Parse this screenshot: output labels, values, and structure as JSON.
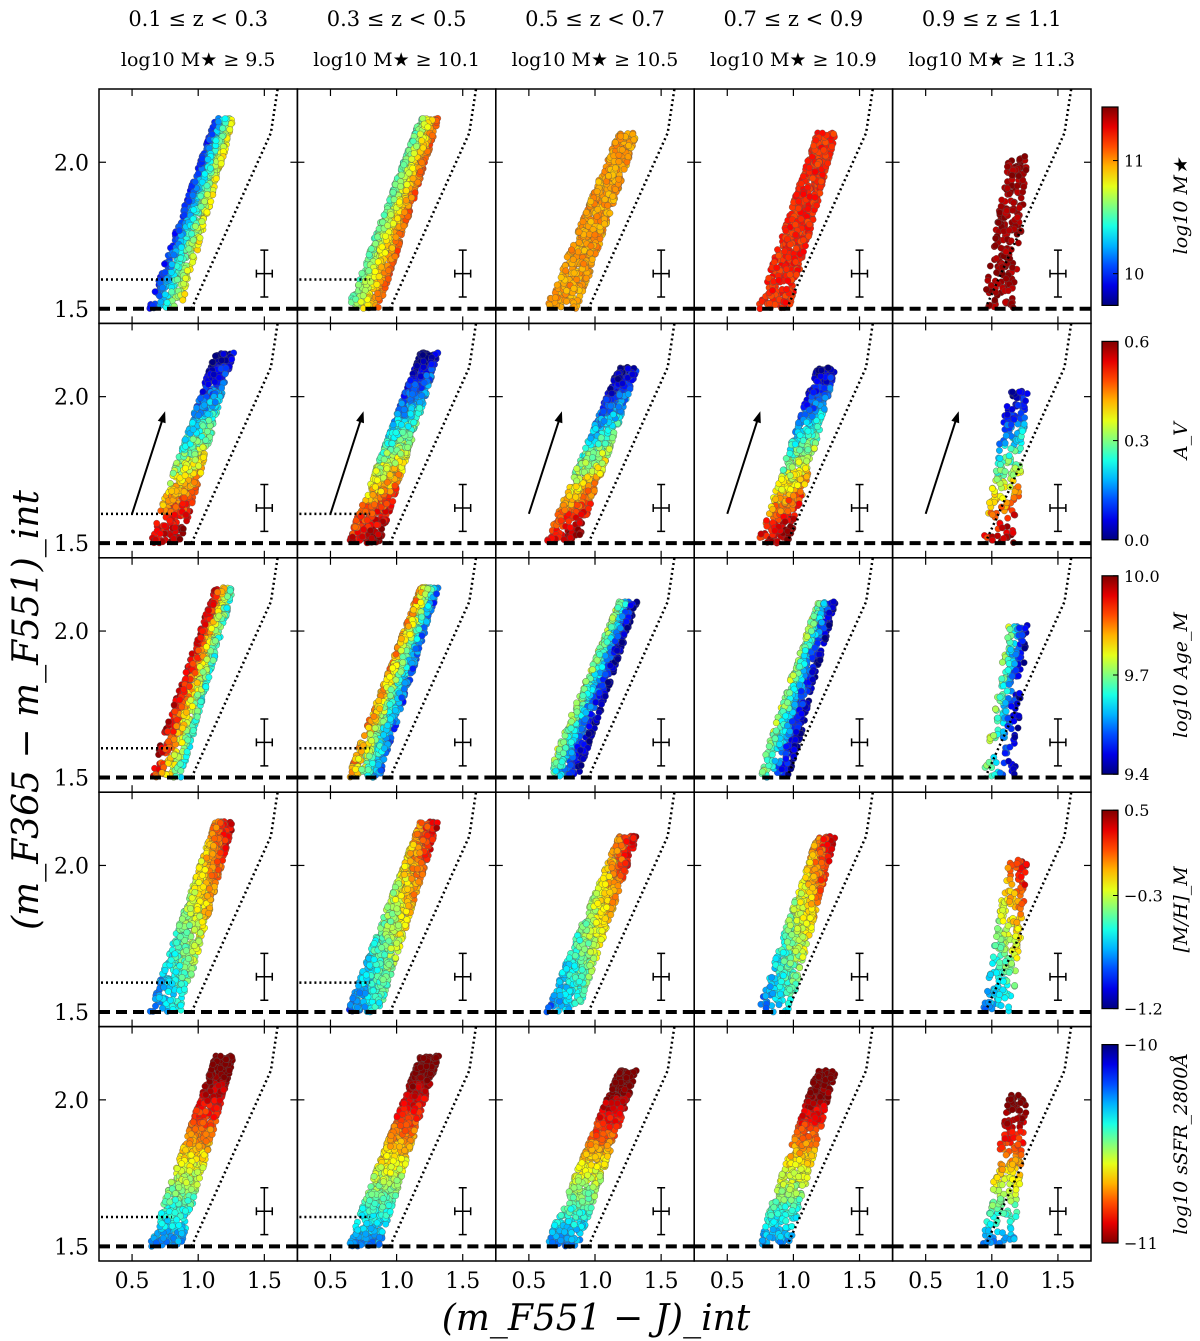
{
  "figure": {
    "xlabel": "(m_F551 − J)_int",
    "ylabel": "(m_F365 − m_F551)_int"
  },
  "columns": [
    {
      "z_label": "0.1 ≤ z < 0.3",
      "mass_label": "log10 M★ ≥ 9.5"
    },
    {
      "z_label": "0.3 ≤ z < 0.5",
      "mass_label": "log10 M★ ≥ 10.1"
    },
    {
      "z_label": "0.5 ≤ z < 0.7",
      "mass_label": "log10 M★ ≥ 10.5"
    },
    {
      "z_label": "0.7 ≤ z < 0.9",
      "mass_label": "log10 M★ ≥ 10.9"
    },
    {
      "z_label": "0.9 ≤ z ≤ 1.1",
      "mass_label": "log10 M★ ≥ 11.3"
    }
  ],
  "rows": [
    {
      "colorbar_label": "log10 M★",
      "ticks": [
        "11",
        "10"
      ]
    },
    {
      "colorbar_label": "A_V",
      "ticks": [
        "0.6",
        "0.3",
        "0.0"
      ]
    },
    {
      "colorbar_label": "log10 Age_M",
      "ticks": [
        "10.0",
        "9.7",
        "9.4"
      ]
    },
    {
      "colorbar_label": "[M/H]_M",
      "ticks": [
        "0.5",
        "−0.3",
        "−1.2"
      ]
    },
    {
      "colorbar_label": "log10 sSFR_2800Å",
      "ticks": [
        "−10",
        "−11"
      ]
    }
  ],
  "chart_data": {
    "type": "scatter",
    "layout": "5x5 grid",
    "xlim": [
      0.25,
      1.75
    ],
    "ylim": [
      1.45,
      2.25
    ],
    "xticks": [
      "0.5",
      "1.0",
      "1.5"
    ],
    "yticks": [
      "1.5",
      "2.0"
    ],
    "colormap": "jet",
    "columns_x_range": [
      [
        0.6,
        1.25
      ],
      [
        0.6,
        1.3
      ],
      [
        0.6,
        1.3
      ],
      [
        0.7,
        1.3
      ],
      [
        0.9,
        1.25
      ]
    ],
    "columns_y_max": [
      2.15,
      2.15,
      2.1,
      2.1,
      2.02
    ],
    "columns_npoints": [
      1600,
      2200,
      1500,
      1300,
      450
    ],
    "reference_lines": {
      "dashed_y": 1.5,
      "dotted_horizontal_y": 1.6,
      "dotted_horizontal_x_end": 0.8,
      "dotted_slanted": [
        [
          0.95,
          1.5
        ],
        [
          1.55,
          2.1
        ],
        [
          1.6,
          2.25
        ]
      ]
    },
    "error_bar": {
      "x": 1.5,
      "y": 1.62,
      "xerr": 0.06,
      "yerr": 0.08
    },
    "reddening_vector": {
      "from": [
        0.5,
        1.6
      ],
      "to": [
        0.75,
        1.95
      ]
    }
  }
}
